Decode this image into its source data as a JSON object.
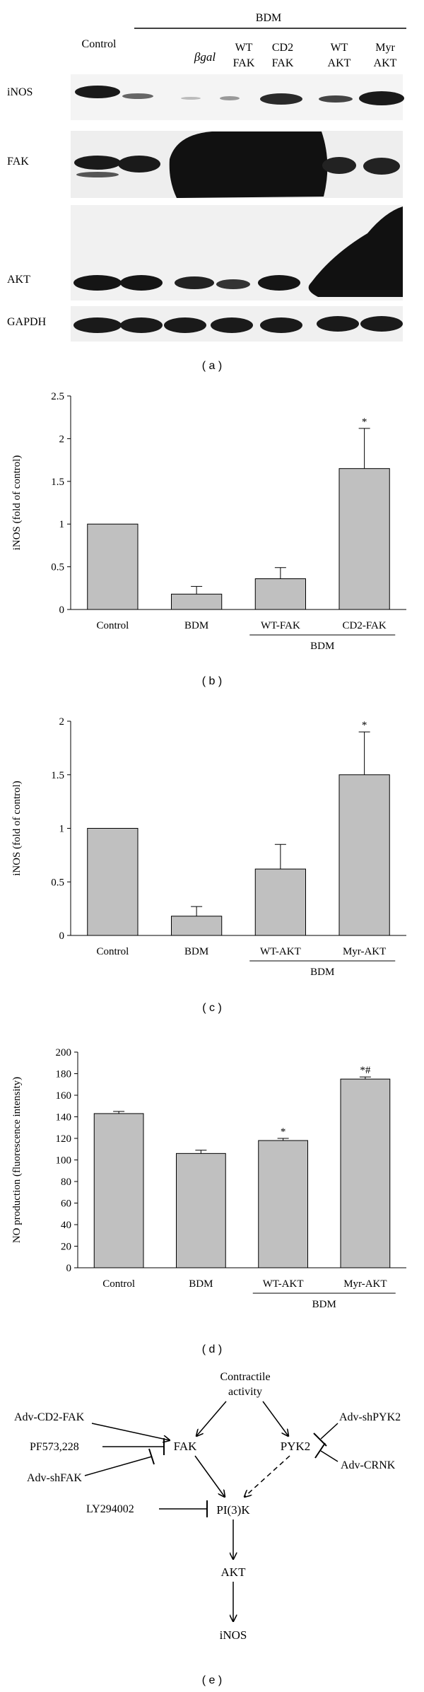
{
  "panel_a": {
    "caption": "( a )",
    "group_label": "BDM",
    "lane_labels": [
      {
        "line1": "Control",
        "line2": ""
      },
      {
        "line1": "",
        "line2": ""
      },
      {
        "line1": "βgal",
        "line2": ""
      },
      {
        "line1": "WT",
        "line2": "FAK"
      },
      {
        "line1": "CD2",
        "line2": "FAK"
      },
      {
        "line1": "WT",
        "line2": "AKT"
      },
      {
        "line1": "Myr",
        "line2": "AKT"
      }
    ],
    "blot_labels": [
      "iNOS",
      "FAK",
      "AKT",
      "GAPDH"
    ]
  },
  "chart_data": [
    {
      "type": "bar",
      "panel": "b",
      "caption": "( b )",
      "categories": [
        "Control",
        "BDM",
        "WT-FAK",
        "CD2-FAK"
      ],
      "values": [
        1.0,
        0.18,
        0.36,
        1.65
      ],
      "errors": [
        0,
        0.09,
        0.13,
        0.47
      ],
      "annotations": [
        "",
        "",
        "",
        "*"
      ],
      "group_label": "BDM",
      "group_span": [
        2,
        3
      ],
      "ylabel": "iNOS (fold of control)",
      "ylim": [
        0,
        2.5
      ],
      "yticks": [
        "0",
        "0.5",
        "1",
        "1.5",
        "2",
        "2.5"
      ],
      "ytick_values": [
        0,
        0.5,
        1,
        1.5,
        2,
        2.5
      ],
      "bar_color": "#c0c0c0"
    },
    {
      "type": "bar",
      "panel": "c",
      "caption": "( c )",
      "categories": [
        "Control",
        "BDM",
        "WT-AKT",
        "Myr-AKT"
      ],
      "values": [
        1.0,
        0.18,
        0.62,
        1.5
      ],
      "errors": [
        0,
        0.09,
        0.23,
        0.4
      ],
      "annotations": [
        "",
        "",
        "",
        "*"
      ],
      "group_label": "BDM",
      "group_span": [
        2,
        3
      ],
      "ylabel": "iNOS (fold of control)",
      "ylim": [
        0,
        2
      ],
      "yticks": [
        "0",
        "0.5",
        "1",
        "1.5",
        "2"
      ],
      "ytick_values": [
        0,
        0.5,
        1,
        1.5,
        2
      ],
      "bar_color": "#c0c0c0"
    },
    {
      "type": "bar",
      "panel": "d",
      "caption": "( d )",
      "categories": [
        "Control",
        "BDM",
        "WT-AKT",
        "Myr-AKT"
      ],
      "values": [
        143,
        106,
        118,
        175
      ],
      "errors": [
        2,
        3,
        2,
        2
      ],
      "annotations": [
        "",
        "",
        "*",
        "*#"
      ],
      "group_label": "BDM",
      "group_span": [
        2,
        3
      ],
      "ylabel": "NO production (fluorescence intensity)",
      "ylim": [
        0,
        200
      ],
      "yticks": [
        "0",
        "20",
        "40",
        "60",
        "80",
        "100",
        "120",
        "140",
        "160",
        "180",
        "200"
      ],
      "ytick_values": [
        0,
        20,
        40,
        60,
        80,
        100,
        120,
        140,
        160,
        180,
        200
      ],
      "bar_color": "#c0c0c0"
    }
  ],
  "panel_e": {
    "caption": "( e )",
    "nodes": {
      "contractile_1": "Contractile",
      "contractile_2": "activity",
      "adv_cd2fak": "Adv-CD2-FAK",
      "pf573": "PF573,228",
      "adv_shfak": "Adv-shFAK",
      "ly294": "LY294002",
      "fak": "FAK",
      "pyk2": "PYK2",
      "adv_shpyk2": "Adv-shPYK2",
      "adv_crnk": "Adv-CRNK",
      "pi3k": "PI(3)K",
      "akt": "AKT",
      "inos": "iNOS"
    }
  }
}
